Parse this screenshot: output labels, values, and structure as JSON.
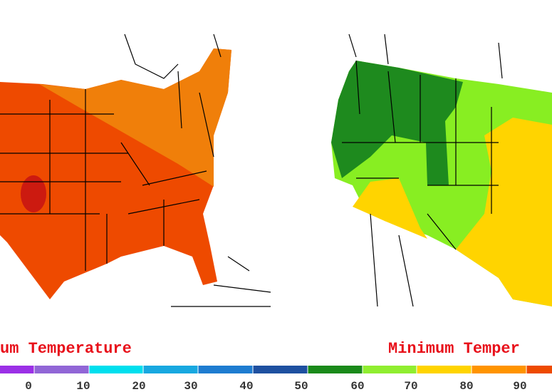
{
  "titles": {
    "left": "um Temperature",
    "right": "Minimum Temper"
  },
  "legend": {
    "labels": [
      "0",
      "10",
      "20",
      "30",
      "40",
      "50",
      "60",
      "70",
      "80",
      "90"
    ]
  }
}
